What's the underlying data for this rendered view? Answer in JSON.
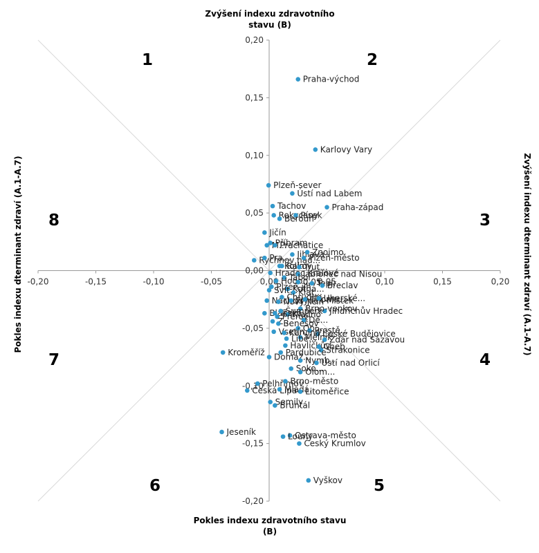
{
  "chart_data": {
    "type": "scatter",
    "xlabel": "Zvýšení indexu dterminant zdraví (A.1-A.7)",
    "xlabel_neg": "Pokles indexu dterminant zdraví (A.1-A.7)",
    "ylabel": "Zvýšení  indexu zdravotního stavu (B)",
    "ylabel_neg": "Pokles  indexu zdravotního stavu (B)",
    "xlim": [
      -0.2,
      0.2
    ],
    "ylim": [
      -0.2,
      0.2
    ],
    "x_ticks": [
      "-0,20",
      "-0,15",
      "-0,10",
      "-0,05",
      "0,00",
      "0,05",
      "0,10",
      "0,15",
      "0,20"
    ],
    "y_ticks": [
      "0,20",
      "0,15",
      "0,10",
      "0,05",
      "0,00",
      "-0,05",
      "-0,10",
      "-0,15",
      "-0,20"
    ],
    "octants": [
      "1",
      "2",
      "3",
      "4",
      "5",
      "6",
      "7",
      "8"
    ],
    "marker_color": "#3399cc",
    "points": [
      {
        "label": "Praha-východ",
        "x": 0.025,
        "y": 0.166
      },
      {
        "label": "Karlovy Vary",
        "x": 0.04,
        "y": 0.105
      },
      {
        "label": "Plzeň-sever",
        "x": -0.0005,
        "y": 0.074
      },
      {
        "label": "Ústí nad Labem",
        "x": 0.02,
        "y": 0.067
      },
      {
        "label": "Praha-západ",
        "x": 0.05,
        "y": 0.055
      },
      {
        "label": "Tachov",
        "x": 0.003,
        "y": 0.056
      },
      {
        "label": "Jičín",
        "x": -0.004,
        "y": 0.033
      },
      {
        "label": "Rokycany",
        "x": 0.004,
        "y": 0.048
      },
      {
        "label": "Písek",
        "x": 0.023,
        "y": 0.048
      },
      {
        "label": "Beroun",
        "x": 0.009,
        "y": 0.045
      },
      {
        "label": "Příbram",
        "x": 0.001,
        "y": 0.024
      },
      {
        "label": "M...",
        "x": -0.002,
        "y": 0.022
      },
      {
        "label": "Prachatice",
        "x": 0.005,
        "y": 0.022
      },
      {
        "label": "Rychnov nad...",
        "x": -0.013,
        "y": 0.009
      },
      {
        "label": "Pra...",
        "x": -0.004,
        "y": 0.011
      },
      {
        "label": "Jihlava",
        "x": 0.02,
        "y": 0.014
      },
      {
        "label": "Znojmo",
        "x": 0.033,
        "y": 0.016
      },
      {
        "label": "Plzeň-město",
        "x": 0.03,
        "y": 0.011
      },
      {
        "label": "Rakov...",
        "x": 0.011,
        "y": 0.004
      },
      {
        "label": "Kolín",
        "x": 0.009,
        "y": 0.004
      },
      {
        "label": "Trut...",
        "x": 0.026,
        "y": 0.003
      },
      {
        "label": "Hradec Králové",
        "x": 0.001,
        "y": -0.002
      },
      {
        "label": "Jablonec nad Nisou",
        "x": 0.025,
        "y": -0.003
      },
      {
        "label": "Tábor",
        "x": 0.013,
        "y": -0.006
      },
      {
        "label": "Hodo...",
        "x": 0.006,
        "y": -0.009
      },
      {
        "label": "0,05",
        "x": 0.025,
        "y": -0.01
      },
      {
        "label": "Tepl...",
        "x": 0.037,
        "y": -0.011
      },
      {
        "label": "Břeclav",
        "x": 0.046,
        "y": -0.013
      },
      {
        "label": "Plzeň-jih",
        "x": 0.002,
        "y": -0.014
      },
      {
        "label": "Kutná...",
        "x": 0.016,
        "y": -0.016
      },
      {
        "label": "Svit...",
        "x": 0.0,
        "y": -0.017
      },
      {
        "label": "Náchod",
        "x": -0.002,
        "y": -0.026
      },
      {
        "label": "Klat...",
        "x": 0.021,
        "y": -0.019
      },
      {
        "label": "Chrudim",
        "x": 0.011,
        "y": -0.023
      },
      {
        "label": "Nový Jičín",
        "x": 0.008,
        "y": -0.027
      },
      {
        "label": "Frýdek-Místek",
        "x": 0.019,
        "y": -0.026
      },
      {
        "label": "Chomu...",
        "x": 0.031,
        "y": -0.025
      },
      {
        "label": "Uherské...",
        "x": 0.043,
        "y": -0.024
      },
      {
        "label": "Jindřichův Hradec",
        "x": 0.048,
        "y": -0.035
      },
      {
        "label": "Brno-venkov",
        "x": 0.027,
        "y": -0.033
      },
      {
        "label": "Blansko",
        "x": -0.004,
        "y": -0.037
      },
      {
        "label": "Tře...",
        "x": 0.005,
        "y": -0.037
      },
      {
        "label": "Šumperk",
        "x": 0.01,
        "y": -0.035
      },
      {
        "label": "Kladno",
        "x": 0.016,
        "y": -0.038
      },
      {
        "label": "Přerov",
        "x": 0.007,
        "y": -0.04
      },
      {
        "label": "Dě...",
        "x": 0.03,
        "y": -0.043
      },
      {
        "label": "Z...",
        "x": 0.003,
        "y": -0.044
      },
      {
        "label": "Benešov",
        "x": 0.008,
        "y": -0.046
      },
      {
        "label": "Op...",
        "x": 0.025,
        "y": -0.05
      },
      {
        "label": "Prostě...",
        "x": 0.035,
        "y": -0.052
      },
      {
        "label": "České Budějovice",
        "x": 0.042,
        "y": -0.055
      },
      {
        "label": "Vsetín",
        "x": 0.004,
        "y": -0.053
      },
      {
        "label": "Karviná",
        "x": 0.013,
        "y": -0.054
      },
      {
        "label": "Mělník",
        "x": 0.027,
        "y": -0.058
      },
      {
        "label": "Libe...",
        "x": 0.015,
        "y": -0.059
      },
      {
        "label": "Žďár nad Sázavou",
        "x": 0.048,
        "y": -0.06
      },
      {
        "label": "Havlíčkův...",
        "x": 0.014,
        "y": -0.065
      },
      {
        "label": "Cheb",
        "x": 0.043,
        "y": -0.066
      },
      {
        "label": "Kroměříž",
        "x": -0.04,
        "y": -0.071
      },
      {
        "label": "Strakonice",
        "x": 0.045,
        "y": -0.069
      },
      {
        "label": "Pardubice",
        "x": 0.01,
        "y": -0.071
      },
      {
        "label": "Domaž...",
        "x": 0.0,
        "y": -0.075
      },
      {
        "label": "Nymb...",
        "x": 0.027,
        "y": -0.078
      },
      {
        "label": "Ústí nad Orlicí",
        "x": 0.041,
        "y": -0.08
      },
      {
        "label": "Soko...",
        "x": 0.019,
        "y": -0.085
      },
      {
        "label": "Olom...",
        "x": 0.027,
        "y": -0.088
      },
      {
        "label": "Pelhřimov",
        "x": -0.01,
        "y": -0.098
      },
      {
        "label": "Brno-město",
        "x": 0.014,
        "y": -0.096
      },
      {
        "label": "Česká Lípa",
        "x": -0.019,
        "y": -0.104
      },
      {
        "label": "Mladá...",
        "x": 0.009,
        "y": -0.103
      },
      {
        "label": "Litoměřice",
        "x": 0.027,
        "y": -0.105
      },
      {
        "label": "Semily",
        "x": 0.001,
        "y": -0.114
      },
      {
        "label": "Bruntál",
        "x": 0.005,
        "y": -0.117
      },
      {
        "label": "Jeseník",
        "x": -0.041,
        "y": -0.14
      },
      {
        "label": "Ostrava-město",
        "x": 0.018,
        "y": -0.143
      },
      {
        "label": "Louny",
        "x": 0.012,
        "y": -0.144
      },
      {
        "label": "Český Krumlov",
        "x": 0.026,
        "y": -0.15
      },
      {
        "label": "Vyškov",
        "x": 0.034,
        "y": -0.182
      }
    ]
  }
}
